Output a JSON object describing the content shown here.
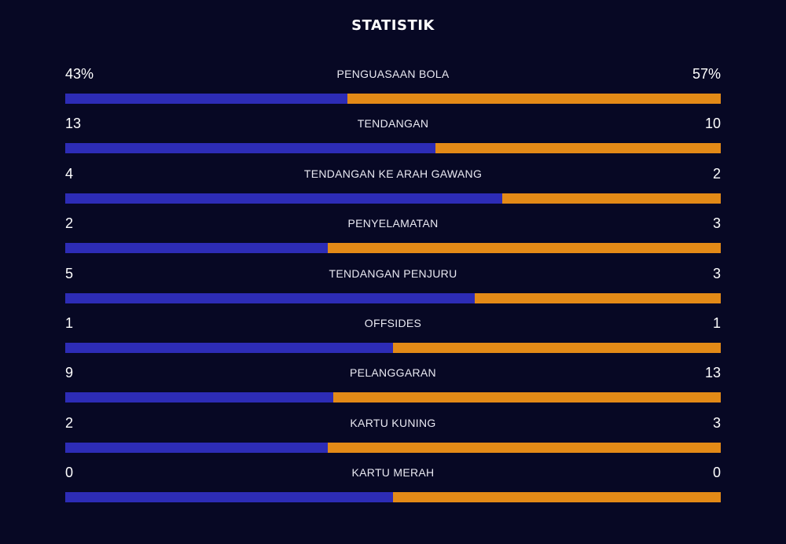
{
  "title": "STATISTIK",
  "colors": {
    "background": "#070824",
    "home": "#2d2cb6",
    "away": "#e38a17"
  },
  "stats": [
    {
      "label": "PENGUASAAN BOLA",
      "home": "43%",
      "away": "57%",
      "home_share": 0.43
    },
    {
      "label": "TENDANGAN",
      "home": "13",
      "away": "10",
      "home_share": 0.565
    },
    {
      "label": "TENDANGAN KE ARAH GAWANG",
      "home": "4",
      "away": "2",
      "home_share": 0.667
    },
    {
      "label": "PENYELAMATAN",
      "home": "2",
      "away": "3",
      "home_share": 0.4
    },
    {
      "label": "TENDANGAN PENJURU",
      "home": "5",
      "away": "3",
      "home_share": 0.625
    },
    {
      "label": "OFFSIDES",
      "home": "1",
      "away": "1",
      "home_share": 0.5
    },
    {
      "label": "PELANGGARAN",
      "home": "9",
      "away": "13",
      "home_share": 0.409
    },
    {
      "label": "KARTU KUNING",
      "home": "2",
      "away": "3",
      "home_share": 0.4
    },
    {
      "label": "KARTU MERAH",
      "home": "0",
      "away": "0",
      "home_share": 0.5
    }
  ]
}
